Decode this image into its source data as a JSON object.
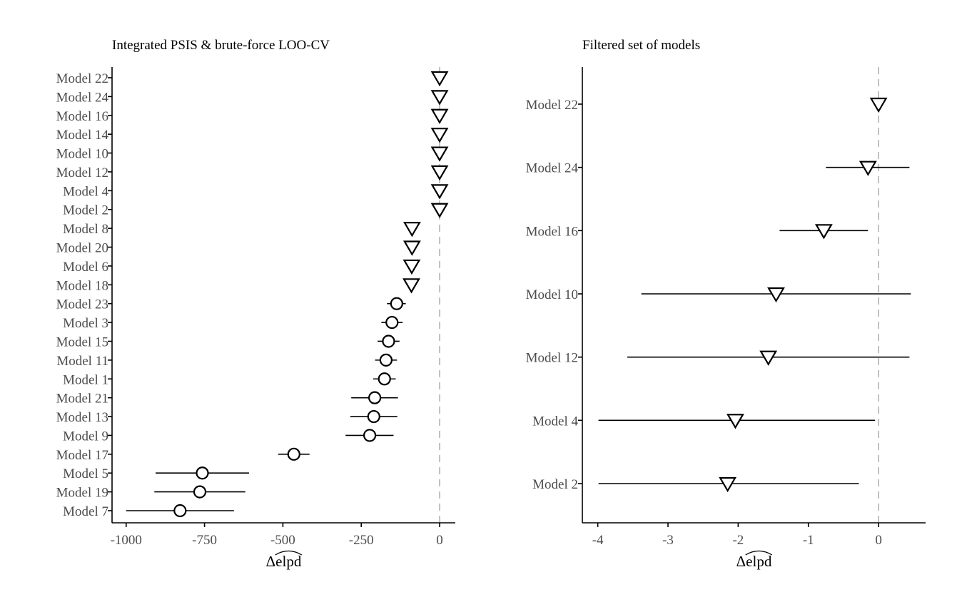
{
  "chart_data": [
    {
      "type": "scatter",
      "title": "Integrated PSIS & brute-force LOO-CV",
      "xlabel": "Δelpd",
      "xlim": [
        -1045,
        50
      ],
      "xticks": [
        -1000,
        -750,
        -500,
        -250,
        0
      ],
      "xtick_labels": [
        "-1000",
        "-750",
        "-500",
        "-250",
        "0"
      ],
      "reference_line_x": 0,
      "points": [
        {
          "label": "Model 22",
          "x": 0,
          "lo": null,
          "hi": null,
          "marker": "triangle-down"
        },
        {
          "label": "Model 24",
          "x": 0,
          "lo": null,
          "hi": null,
          "marker": "triangle-down"
        },
        {
          "label": "Model 16",
          "x": 0,
          "lo": null,
          "hi": null,
          "marker": "triangle-down"
        },
        {
          "label": "Model 14",
          "x": 0,
          "lo": null,
          "hi": null,
          "marker": "triangle-down"
        },
        {
          "label": "Model 10",
          "x": 0,
          "lo": null,
          "hi": null,
          "marker": "triangle-down"
        },
        {
          "label": "Model 12",
          "x": 0,
          "lo": null,
          "hi": null,
          "marker": "triangle-down"
        },
        {
          "label": "Model 4",
          "x": 0,
          "lo": null,
          "hi": null,
          "marker": "triangle-down"
        },
        {
          "label": "Model 2",
          "x": 0,
          "lo": null,
          "hi": null,
          "marker": "triangle-down"
        },
        {
          "label": "Model 8",
          "x": -88,
          "lo": null,
          "hi": null,
          "marker": "triangle-down"
        },
        {
          "label": "Model 20",
          "x": -88,
          "lo": null,
          "hi": null,
          "marker": "triangle-down"
        },
        {
          "label": "Model 6",
          "x": -89,
          "lo": null,
          "hi": null,
          "marker": "triangle-down"
        },
        {
          "label": "Model 18",
          "x": -90,
          "lo": null,
          "hi": null,
          "marker": "triangle-down"
        },
        {
          "label": "Model 23",
          "x": -137,
          "lo": -168,
          "hi": -108,
          "marker": "circle"
        },
        {
          "label": "Model 3",
          "x": -152,
          "lo": -186,
          "hi": -118,
          "marker": "circle"
        },
        {
          "label": "Model 15",
          "x": -163,
          "lo": -198,
          "hi": -128,
          "marker": "circle"
        },
        {
          "label": "Model 11",
          "x": -171,
          "lo": -206,
          "hi": -136,
          "marker": "circle"
        },
        {
          "label": "Model 1",
          "x": -176,
          "lo": -212,
          "hi": -140,
          "marker": "circle"
        },
        {
          "label": "Model 21",
          "x": -207,
          "lo": -282,
          "hi": -133,
          "marker": "circle"
        },
        {
          "label": "Model 13",
          "x": -210,
          "lo": -285,
          "hi": -135,
          "marker": "circle"
        },
        {
          "label": "Model 9",
          "x": -223,
          "lo": -300,
          "hi": -147,
          "marker": "circle"
        },
        {
          "label": "Model 17",
          "x": -465,
          "lo": -515,
          "hi": -415,
          "marker": "circle"
        },
        {
          "label": "Model 5",
          "x": -757,
          "lo": -906,
          "hi": -608,
          "marker": "circle"
        },
        {
          "label": "Model 19",
          "x": -765,
          "lo": -910,
          "hi": -620,
          "marker": "circle"
        },
        {
          "label": "Model 7",
          "x": -828,
          "lo": -1000,
          "hi": -656,
          "marker": "circle"
        }
      ]
    },
    {
      "type": "scatter",
      "title": "Filtered set of models",
      "xlabel": "Δelpd",
      "xlim": [
        -4.22,
        0.67
      ],
      "xticks": [
        -4,
        -3,
        -2,
        -1,
        0
      ],
      "xtick_labels": [
        "-4",
        "-3",
        "-2",
        "-1",
        "0"
      ],
      "reference_line_x": 0,
      "points": [
        {
          "label": "Model 22",
          "x": 0,
          "lo": null,
          "hi": null,
          "marker": "triangle-down"
        },
        {
          "label": "Model 24",
          "x": -0.15,
          "lo": -0.75,
          "hi": 0.44,
          "marker": "triangle-down"
        },
        {
          "label": "Model 16",
          "x": -0.78,
          "lo": -1.41,
          "hi": -0.15,
          "marker": "triangle-down"
        },
        {
          "label": "Model 10",
          "x": -1.46,
          "lo": -3.38,
          "hi": 0.46,
          "marker": "triangle-down"
        },
        {
          "label": "Model 12",
          "x": -1.57,
          "lo": -3.58,
          "hi": 0.44,
          "marker": "triangle-down"
        },
        {
          "label": "Model 4",
          "x": -2.04,
          "lo": -3.99,
          "hi": -0.05,
          "marker": "triangle-down"
        },
        {
          "label": "Model 2",
          "x": -2.15,
          "lo": -3.99,
          "hi": -0.28,
          "marker": "triangle-down"
        }
      ]
    }
  ]
}
